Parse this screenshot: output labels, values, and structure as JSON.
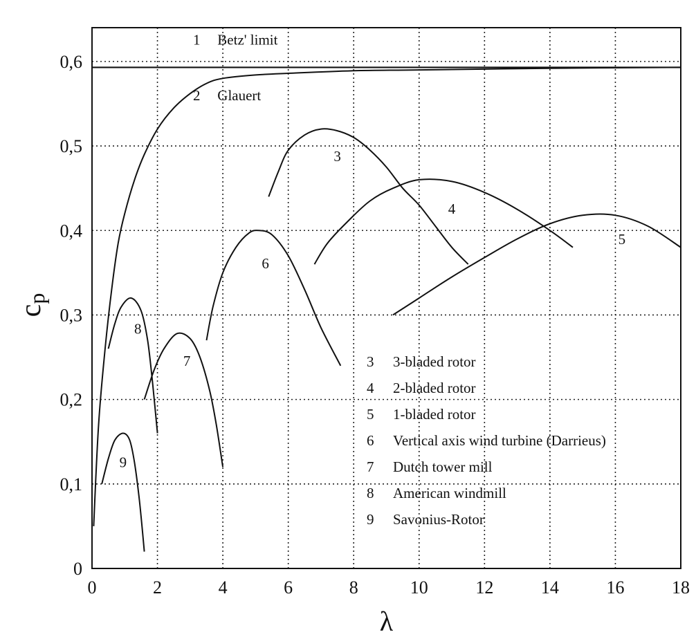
{
  "chart_data": {
    "type": "line",
    "xlabel": "λ",
    "ylabel": "c",
    "ylabel_sub": "p",
    "xlim": [
      0,
      18
    ],
    "ylim": [
      0,
      0.6
    ],
    "ymax": 0.64,
    "grid": true,
    "x_ticks": [
      0,
      2,
      4,
      6,
      8,
      10,
      12,
      14,
      16,
      18
    ],
    "x_tick_labels": [
      "0",
      "2",
      "4",
      "6",
      "8",
      "10",
      "12",
      "14",
      "16",
      "18"
    ],
    "y_ticks": [
      0,
      0.1,
      0.2,
      0.3,
      0.4,
      0.5,
      0.6
    ],
    "y_tick_labels": [
      "0",
      "0,1",
      "0,2",
      "0,3",
      "0,4",
      "0,5",
      "0,6"
    ],
    "series": [
      {
        "id": "1",
        "label": "1",
        "points": [
          [
            0,
            0.593
          ],
          [
            18,
            0.593
          ]
        ]
      },
      {
        "id": "2",
        "label": "2",
        "points": [
          [
            0.05,
            0.05
          ],
          [
            0.2,
            0.17
          ],
          [
            0.4,
            0.26
          ],
          [
            0.6,
            0.33
          ],
          [
            0.8,
            0.385
          ],
          [
            1.0,
            0.42
          ],
          [
            1.3,
            0.46
          ],
          [
            1.6,
            0.49
          ],
          [
            2.0,
            0.52
          ],
          [
            2.5,
            0.545
          ],
          [
            3.0,
            0.562
          ],
          [
            3.5,
            0.574
          ],
          [
            4.0,
            0.58
          ],
          [
            5.0,
            0.584
          ],
          [
            6.0,
            0.586
          ],
          [
            8.0,
            0.589
          ],
          [
            10.0,
            0.59
          ],
          [
            14.0,
            0.592
          ],
          [
            18.0,
            0.593
          ]
        ]
      },
      {
        "id": "3",
        "label": "3",
        "points": [
          [
            5.4,
            0.44
          ],
          [
            5.7,
            0.47
          ],
          [
            6.0,
            0.495
          ],
          [
            6.5,
            0.513
          ],
          [
            7.0,
            0.52
          ],
          [
            7.5,
            0.518
          ],
          [
            8.0,
            0.51
          ],
          [
            8.5,
            0.495
          ],
          [
            9.0,
            0.475
          ],
          [
            9.5,
            0.45
          ],
          [
            10.0,
            0.43
          ],
          [
            10.5,
            0.405
          ],
          [
            11.0,
            0.38
          ],
          [
            11.5,
            0.36
          ]
        ]
      },
      {
        "id": "4",
        "label": "4",
        "points": [
          [
            6.8,
            0.36
          ],
          [
            7.2,
            0.385
          ],
          [
            7.8,
            0.41
          ],
          [
            8.5,
            0.435
          ],
          [
            9.2,
            0.45
          ],
          [
            10.0,
            0.46
          ],
          [
            11.0,
            0.458
          ],
          [
            12.0,
            0.445
          ],
          [
            13.0,
            0.425
          ],
          [
            14.0,
            0.4
          ],
          [
            14.7,
            0.38
          ]
        ]
      },
      {
        "id": "5",
        "label": "5",
        "points": [
          [
            9.2,
            0.3
          ],
          [
            10.0,
            0.32
          ],
          [
            11.0,
            0.345
          ],
          [
            12.0,
            0.368
          ],
          [
            13.0,
            0.39
          ],
          [
            14.0,
            0.408
          ],
          [
            15.0,
            0.418
          ],
          [
            16.0,
            0.418
          ],
          [
            17.0,
            0.405
          ],
          [
            18.0,
            0.38
          ]
        ]
      },
      {
        "id": "6",
        "label": "6",
        "points": [
          [
            3.5,
            0.27
          ],
          [
            3.7,
            0.31
          ],
          [
            4.0,
            0.35
          ],
          [
            4.4,
            0.38
          ],
          [
            4.8,
            0.397
          ],
          [
            5.1,
            0.4
          ],
          [
            5.5,
            0.395
          ],
          [
            6.0,
            0.37
          ],
          [
            6.5,
            0.33
          ],
          [
            7.0,
            0.285
          ],
          [
            7.6,
            0.24
          ]
        ]
      },
      {
        "id": "7",
        "label": "7",
        "points": [
          [
            1.6,
            0.2
          ],
          [
            1.9,
            0.235
          ],
          [
            2.2,
            0.26
          ],
          [
            2.6,
            0.278
          ],
          [
            3.0,
            0.272
          ],
          [
            3.3,
            0.25
          ],
          [
            3.6,
            0.21
          ],
          [
            3.8,
            0.17
          ],
          [
            4.0,
            0.12
          ]
        ]
      },
      {
        "id": "8",
        "label": "8",
        "points": [
          [
            0.5,
            0.26
          ],
          [
            0.7,
            0.29
          ],
          [
            0.9,
            0.31
          ],
          [
            1.2,
            0.32
          ],
          [
            1.5,
            0.305
          ],
          [
            1.7,
            0.27
          ],
          [
            1.85,
            0.22
          ],
          [
            2.0,
            0.16
          ]
        ]
      },
      {
        "id": "9",
        "label": "9",
        "points": [
          [
            0.3,
            0.1
          ],
          [
            0.5,
            0.13
          ],
          [
            0.7,
            0.152
          ],
          [
            0.95,
            0.16
          ],
          [
            1.15,
            0.152
          ],
          [
            1.3,
            0.125
          ],
          [
            1.45,
            0.08
          ],
          [
            1.6,
            0.02
          ]
        ]
      }
    ],
    "annotations": [
      {
        "number": "1",
        "text": "Betz' limit",
        "x": 3.2,
        "y": 0.62
      },
      {
        "number": "2",
        "text": "Glauert",
        "x": 3.2,
        "y": 0.554
      }
    ],
    "curve_labels": [
      {
        "id": "3",
        "x": 7.5,
        "y": 0.482
      },
      {
        "id": "4",
        "x": 11.0,
        "y": 0.42
      },
      {
        "id": "5",
        "x": 16.2,
        "y": 0.384
      },
      {
        "id": "6",
        "x": 5.3,
        "y": 0.355
      },
      {
        "id": "7",
        "x": 2.9,
        "y": 0.24
      },
      {
        "id": "8",
        "x": 1.4,
        "y": 0.278
      },
      {
        "id": "9",
        "x": 0.95,
        "y": 0.12
      }
    ],
    "legend": {
      "placement": "bottom-right",
      "items": [
        {
          "number": "3",
          "text": "3-bladed rotor"
        },
        {
          "number": "4",
          "text": "2-bladed rotor"
        },
        {
          "number": "5",
          "text": "1-bladed rotor"
        },
        {
          "number": "6",
          "text": "Vertical axis wind turbine (Darrieus)"
        },
        {
          "number": "7",
          "text": "Dutch tower mill"
        },
        {
          "number": "8",
          "text": "American windmill"
        },
        {
          "number": "9",
          "text": "Savonius-Rotor"
        }
      ]
    }
  }
}
